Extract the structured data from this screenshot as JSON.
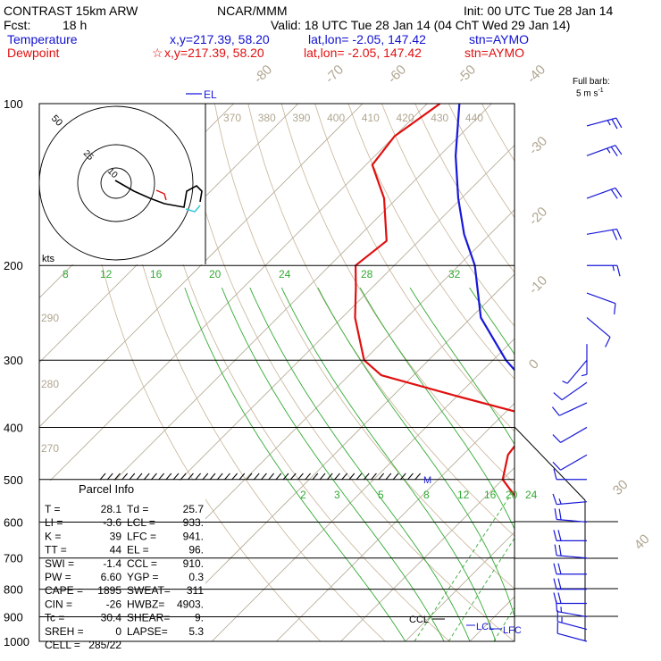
{
  "header": {
    "model": "CONTRAST 15km ARW",
    "center": "NCAR/MMM",
    "init": "Init: 00 UTC Tue 28 Jan 14",
    "fcst_label": "Fcst:",
    "fcst_value": "18 h",
    "valid": "Valid: 18 UTC Tue 28 Jan 14 (04 ChT Wed 29 Jan 14)",
    "temp_label": "Temperature",
    "temp_xy": "x,y=217.39, 58.20",
    "temp_latlon": "lat,lon= -2.05, 147.42",
    "temp_stn": "stn=AYMO",
    "dew_label": "Dewpoint",
    "dew_star": "☆",
    "dew_xy": "x,y=217.39, 58.20",
    "dew_latlon": "lat,lon= -2.05, 147.42",
    "dew_stn": "stn=AYMO",
    "barb_title": "Full barb:",
    "barb_units": "5 m s",
    "barb_exp": "-1"
  },
  "chart_data": {
    "type": "skewt",
    "pressure_levels": [
      100,
      200,
      300,
      400,
      500,
      600,
      700,
      800,
      900,
      1000
    ],
    "temperature_profile_hpa_c": [
      [
        1000,
        27.5
      ],
      [
        975,
        25.5
      ],
      [
        950,
        23.5
      ],
      [
        925,
        22.6
      ],
      [
        900,
        22.2
      ],
      [
        850,
        20.5
      ],
      [
        800,
        18.5
      ],
      [
        750,
        16.0
      ],
      [
        700,
        12.5
      ],
      [
        650,
        9.0
      ],
      [
        600,
        5.5
      ],
      [
        550,
        1.0
      ],
      [
        500,
        -6.5
      ],
      [
        450,
        -13.0
      ],
      [
        400,
        -19.5
      ],
      [
        350,
        -27.5
      ],
      [
        300,
        -38.0
      ],
      [
        250,
        -48.5
      ],
      [
        200,
        -57.5
      ],
      [
        175,
        -64.0
      ],
      [
        150,
        -70.5
      ],
      [
        125,
        -77.5
      ],
      [
        100,
        -85.0
      ]
    ],
    "dewpoint_profile_hpa_c": [
      [
        1000,
        25.7
      ],
      [
        975,
        24.5
      ],
      [
        950,
        22.0
      ],
      [
        925,
        18.5
      ],
      [
        900,
        18.0
      ],
      [
        850,
        15.8
      ],
      [
        800,
        13.0
      ],
      [
        750,
        10.0
      ],
      [
        700,
        7.0
      ],
      [
        650,
        3.0
      ],
      [
        620,
        -1.0
      ],
      [
        580,
        -8.0
      ],
      [
        550,
        -14.0
      ],
      [
        500,
        -20.0
      ],
      [
        450,
        -23.0
      ],
      [
        400,
        -24.0
      ],
      [
        375,
        -28.0
      ],
      [
        350,
        -40.0
      ],
      [
        320,
        -55.0
      ],
      [
        300,
        -60.0
      ],
      [
        250,
        -68.0
      ],
      [
        220,
        -72.5
      ],
      [
        200,
        -76.0
      ],
      [
        180,
        -75.0
      ],
      [
        150,
        -82.0
      ],
      [
        130,
        -89.0
      ],
      [
        115,
        -90.0
      ],
      [
        100,
        -88.0
      ]
    ],
    "isotherm_labels": [
      "-80",
      "-70",
      "-60",
      "-50",
      "-40",
      "-30",
      "-20",
      "-10",
      "0",
      "10",
      "20",
      "30",
      "40"
    ],
    "theta_labels_top": [
      "370",
      "380",
      "390",
      "400",
      "410",
      "420",
      "430",
      "440"
    ],
    "theta_labels_left": [
      "290",
      "280",
      "270"
    ],
    "mixing_ratio_upper": [
      "8",
      "12",
      "16",
      "20",
      "24",
      "28",
      "32"
    ],
    "mixing_ratio_lower": [
      "2",
      "3",
      "5",
      "8",
      "12",
      "16",
      "20",
      "24"
    ],
    "markers": {
      "el": "EL",
      "ccl": "CCL",
      "lcl": "LCL",
      "lfc": "LFC",
      "max_wind": "M"
    },
    "hodograph": {
      "ring_labels": [
        "10",
        "25",
        "50"
      ],
      "units": "kts"
    },
    "wind_barbs": [
      {
        "hpa": 110,
        "dir": 75,
        "spd": 25
      },
      {
        "hpa": 125,
        "dir": 70,
        "spd": 25
      },
      {
        "hpa": 150,
        "dir": 70,
        "spd": 20
      },
      {
        "hpa": 175,
        "dir": 80,
        "spd": 20
      },
      {
        "hpa": 200,
        "dir": 90,
        "spd": 15
      },
      {
        "hpa": 225,
        "dir": 110,
        "spd": 10
      },
      {
        "hpa": 250,
        "dir": 130,
        "spd": 10
      },
      {
        "hpa": 280,
        "dir": 180,
        "spd": 5
      },
      {
        "hpa": 300,
        "dir": 220,
        "spd": 5
      },
      {
        "hpa": 330,
        "dir": 235,
        "spd": 10
      },
      {
        "hpa": 360,
        "dir": 245,
        "spd": 10
      },
      {
        "hpa": 400,
        "dir": 240,
        "spd": 10
      },
      {
        "hpa": 450,
        "dir": 240,
        "spd": 10
      },
      {
        "hpa": 500,
        "dir": 270,
        "spd": 10
      },
      {
        "hpa": 550,
        "dir": 265,
        "spd": 15
      },
      {
        "hpa": 600,
        "dir": 275,
        "spd": 20
      },
      {
        "hpa": 650,
        "dir": 270,
        "spd": 20
      },
      {
        "hpa": 700,
        "dir": 275,
        "spd": 20
      },
      {
        "hpa": 750,
        "dir": 270,
        "spd": 20
      },
      {
        "hpa": 800,
        "dir": 270,
        "spd": 20
      },
      {
        "hpa": 850,
        "dir": 270,
        "spd": 20
      },
      {
        "hpa": 900,
        "dir": 280,
        "spd": 15
      },
      {
        "hpa": 950,
        "dir": 285,
        "spd": 15
      },
      {
        "hpa": 1000,
        "dir": 285,
        "spd": 10
      }
    ]
  },
  "parcel": {
    "title": "Parcel Info",
    "rows": [
      [
        "T   =",
        "28.1",
        "Td  =",
        "25.7"
      ],
      [
        "LI  =",
        "-3.6",
        "LCL =",
        "933."
      ],
      [
        "K   =",
        "39",
        "LFC =",
        "941."
      ],
      [
        "TT  =",
        "44",
        "EL  =",
        "96."
      ],
      [
        "SWI =",
        "-1.4",
        "CCL =",
        "910."
      ],
      [
        "PW  =",
        "6.60",
        "YGP =",
        "0.3"
      ],
      [
        "CAPE =",
        "1895",
        "SWEAT=",
        "311"
      ],
      [
        "CIN  =",
        "-26",
        "HWBZ=",
        "4903."
      ],
      [
        "Tc   =",
        "30.4",
        "SHEAR=",
        "9."
      ],
      [
        "SREH =",
        "0",
        "LAPSE=",
        "5.3"
      ],
      [
        "CELL =",
        "285/22",
        "",
        ""
      ]
    ]
  },
  "colors": {
    "temperature": "#1818d8",
    "dewpoint": "#e01010",
    "mixing": "#33aa33",
    "dry": "#c8b498",
    "isotherm": "#b0a690",
    "grid": "#000000"
  }
}
